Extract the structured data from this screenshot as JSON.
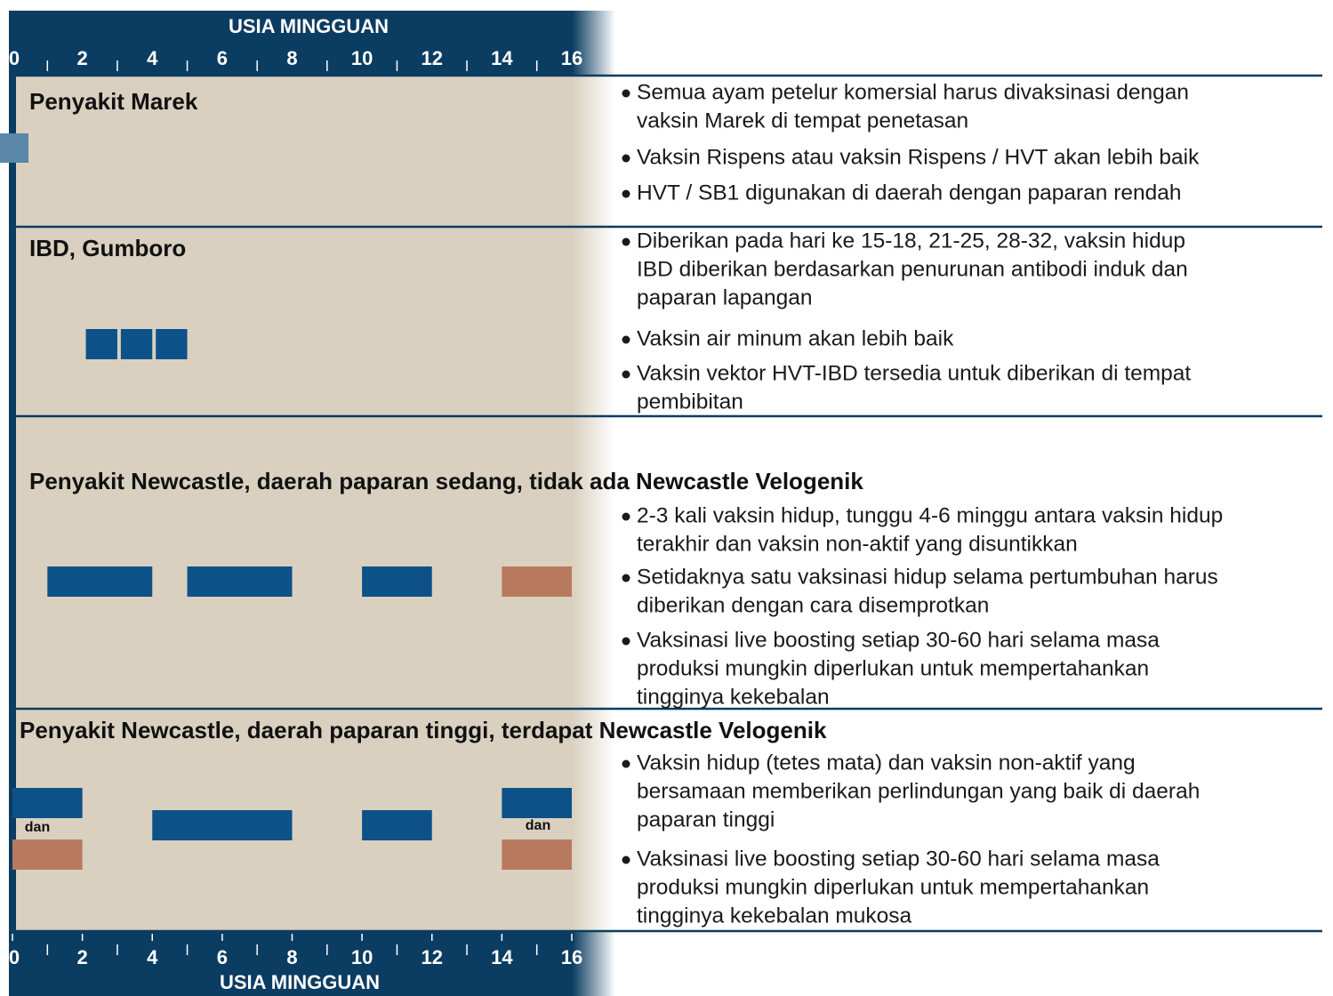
{
  "axis": {
    "title": "USIA MINGGUAN",
    "min": 0,
    "max": 16,
    "ticks": [
      0,
      2,
      4,
      6,
      8,
      10,
      12,
      14,
      16
    ]
  },
  "sections": [
    {
      "title": "Penyakit Marek",
      "bullets": [
        [
          "Semua ayam petelur komersial harus divaksinasi dengan",
          "vaksin Marek di tempat penetasan"
        ],
        [
          "Vaksin Rispens atau vaksin Rispens / HVT akan lebih baik"
        ],
        [
          "HVT / SB1 digunakan di daerah dengan paparan rendah"
        ]
      ],
      "bars": []
    },
    {
      "title": "IBD, Gumboro",
      "bullets": [
        [
          "Diberikan pada hari ke 15-18, 21-25, 28-32, vaksin hidup",
          "IBD diberikan berdasarkan penurunan antibodi induk dan",
          "paparan lapangan"
        ],
        [
          "Vaksin air minum akan lebih baik"
        ],
        [
          "Vaksin vektor HVT-IBD tersedia untuk diberikan di tempat",
          "pembibitan"
        ]
      ],
      "bars": [
        {
          "start": 2.1,
          "end": 3,
          "color": "#0d5189"
        },
        {
          "start": 3.1,
          "end": 4,
          "color": "#0d5189"
        },
        {
          "start": 4.1,
          "end": 5,
          "color": "#0d5189"
        }
      ]
    },
    {
      "title": "Penyakit Newcastle, daerah paparan sedang, tidak ada Newcastle Velogenik",
      "bullets": [
        [
          "2-3 kali vaksin hidup, tunggu 4-6 minggu antara vaksin hidup",
          "terakhir dan vaksin non-aktif yang disuntikkan"
        ],
        [
          "Setidaknya satu vaksinasi hidup selama pertumbuhan harus",
          "diberikan dengan cara disemprotkan"
        ],
        [
          "Vaksinasi live boosting setiap 30-60 hari selama masa",
          "produksi mungkin diperlukan untuk mempertahankan",
          "tingginya kekebalan"
        ]
      ],
      "bars": [
        {
          "start": 1,
          "end": 4,
          "color": "#0d5189"
        },
        {
          "start": 5,
          "end": 8,
          "color": "#0d5189"
        },
        {
          "start": 10,
          "end": 12,
          "color": "#0d5189"
        },
        {
          "start": 14,
          "end": 16,
          "color": "#b87a5e"
        }
      ]
    },
    {
      "title": "Penyakit Newcastle, daerah paparan tinggi, terdapat Newcastle Velogenik",
      "bullets": [
        [
          "Vaksin hidup (tetes mata) dan vaksin non-aktif yang",
          "bersamaan memberikan perlindungan yang baik di daerah",
          "paparan tinggi"
        ],
        [
          "Vaksinasi live boosting setiap 30-60 hari selama masa",
          "produksi mungkin diperlukan untuk mempertahankan",
          "tingginya kekebalan mukosa"
        ]
      ],
      "bars": [
        {
          "start": 0,
          "end": 2,
          "color": "#0d5189"
        },
        {
          "start": 0,
          "end": 2,
          "color": "#b87a5e"
        },
        {
          "start": 4,
          "end": 8,
          "color": "#0d5189"
        },
        {
          "start": 10,
          "end": 12,
          "color": "#0d5189"
        },
        {
          "start": 14,
          "end": 16,
          "color": "#0d5189"
        },
        {
          "start": 14,
          "end": 16,
          "color": "#b87a5e"
        }
      ],
      "labels": [
        "dan",
        "dan"
      ]
    }
  ]
}
